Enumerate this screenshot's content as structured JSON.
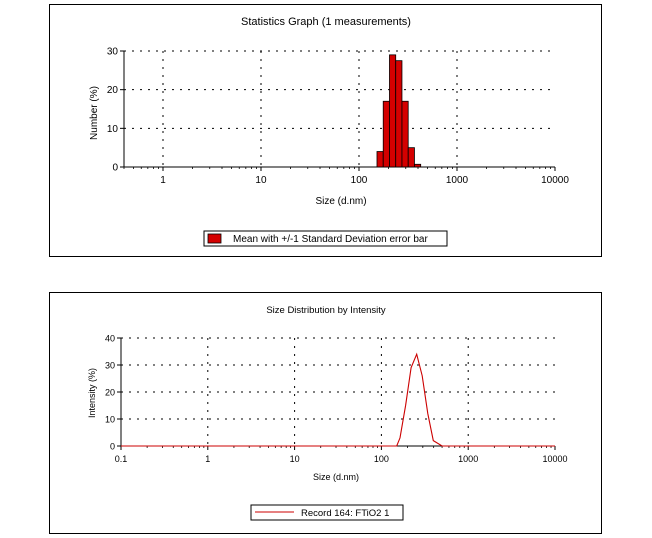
{
  "chart_data": [
    {
      "type": "bar",
      "title": "Statistics Graph (1 measurements)",
      "xlabel": "Size (d.nm)",
      "ylabel": "Number (%)",
      "x_scale": "log",
      "xlim": [
        0.4,
        10000
      ],
      "ylim": [
        0,
        30
      ],
      "x_ticks": [
        1,
        10,
        100,
        1000,
        10000
      ],
      "x_tick_labels": [
        "1",
        "10",
        "100",
        "1000",
        "10000"
      ],
      "y_ticks": [
        0,
        10,
        20,
        30
      ],
      "y_tick_labels": [
        "0",
        "10",
        "20",
        "30"
      ],
      "grid": true,
      "legend_position": "bottom",
      "series": [
        {
          "name": "Mean with +/-1 Standard Deviation error bar",
          "color": "#d40000",
          "x": [
            164.2,
            190.1,
            220.2,
            255.0,
            295.3,
            342.0,
            396.1
          ],
          "values": [
            4.0,
            17.0,
            29.0,
            27.5,
            17.0,
            5.0,
            0.7
          ]
        }
      ]
    },
    {
      "type": "line",
      "title": "Size Distribution by Intensity",
      "xlabel": "Size (d.nm)",
      "ylabel": "Intensity (%)",
      "x_scale": "log",
      "xlim": [
        0.1,
        10000
      ],
      "ylim": [
        0,
        40
      ],
      "x_ticks": [
        0.1,
        1,
        10,
        100,
        1000,
        10000
      ],
      "x_tick_labels": [
        "0.1",
        "1",
        "10",
        "100",
        "1000",
        "10000"
      ],
      "y_ticks": [
        0,
        10,
        20,
        30,
        40
      ],
      "y_tick_labels": [
        "0",
        "10",
        "20",
        "30",
        "40"
      ],
      "grid": true,
      "legend_position": "bottom",
      "series": [
        {
          "name": "Record 164: FTiO2 1",
          "color": "#cc0000",
          "x": [
            0.1,
            100,
            150,
            164,
            190,
            220,
            255,
            295,
            342,
            396,
            500,
            10000
          ],
          "y": [
            0,
            0,
            0,
            3,
            15,
            29,
            34,
            26,
            12,
            2,
            0,
            0
          ]
        }
      ]
    }
  ]
}
